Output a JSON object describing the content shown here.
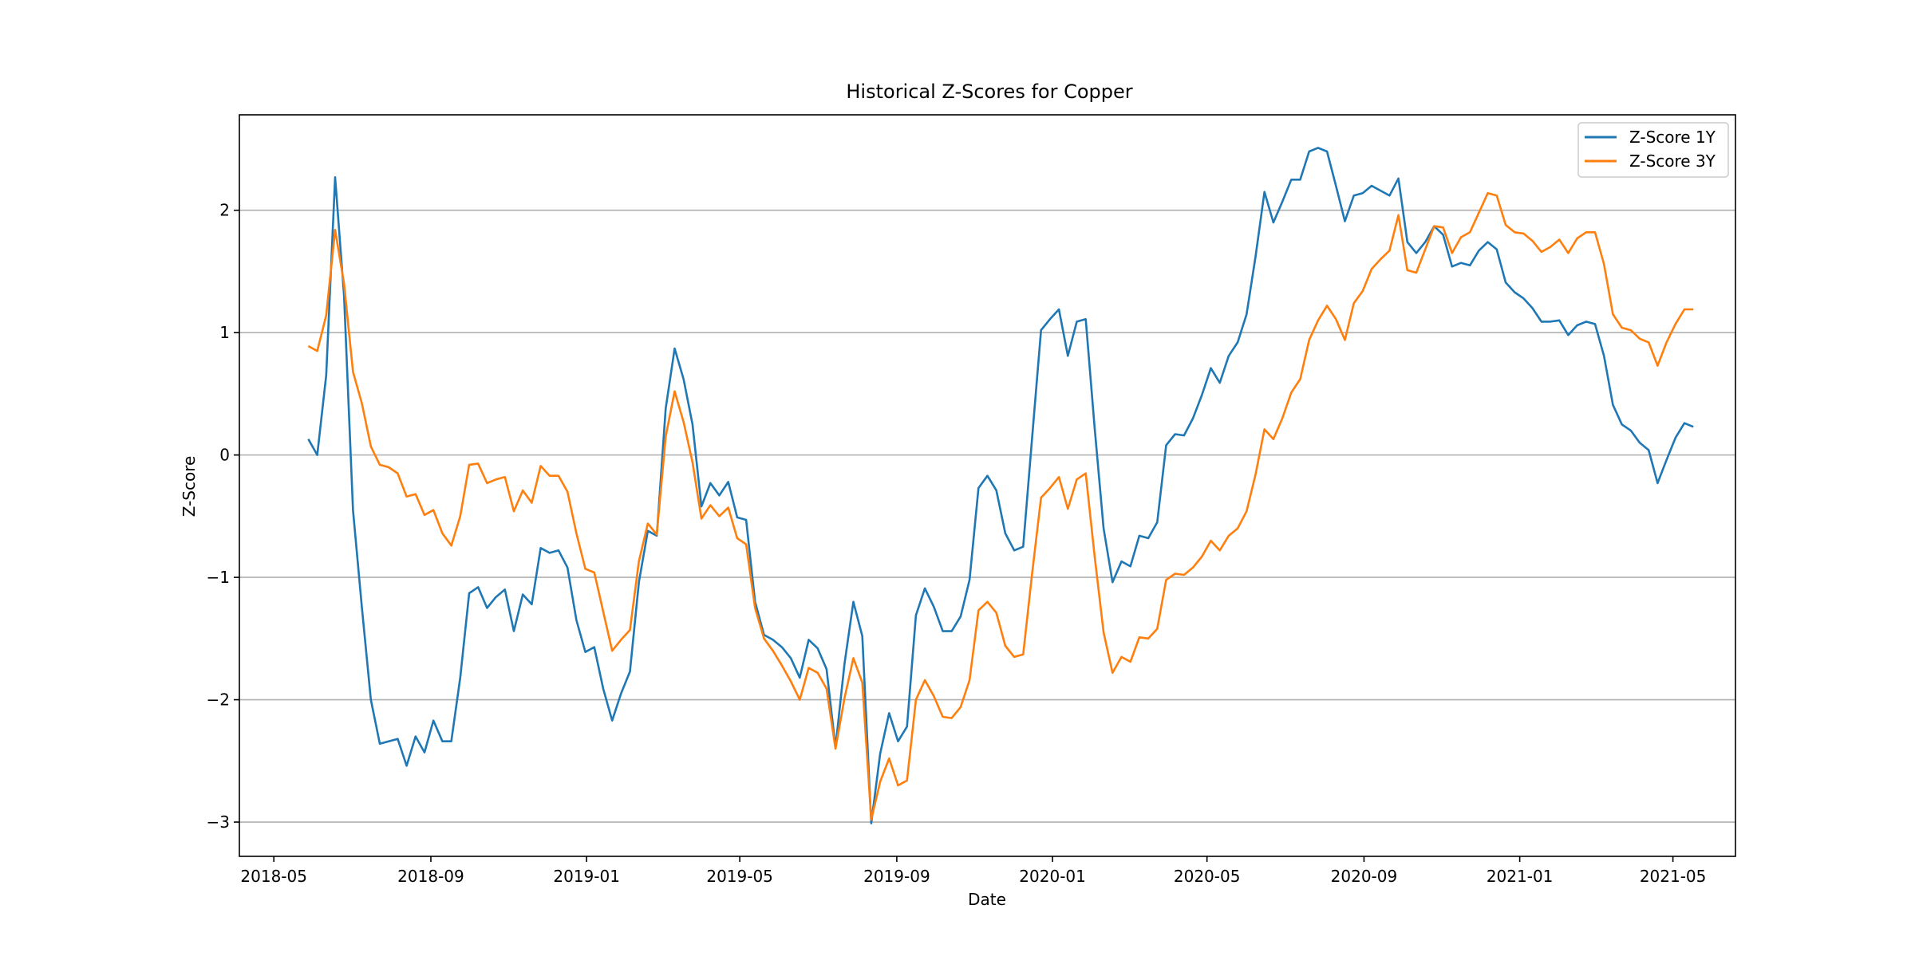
{
  "chart_data": {
    "type": "line",
    "title": "Historical Z-Scores for Copper",
    "xlabel": "Date",
    "ylabel": "Z-Score",
    "x_ticks": [
      "2018-05",
      "2018-09",
      "2019-01",
      "2019-05",
      "2019-09",
      "2020-01",
      "2020-05",
      "2020-09",
      "2021-01",
      "2021-05"
    ],
    "y_ticks": [
      -3,
      -2,
      -1,
      0,
      1,
      2
    ],
    "xlim": [
      "2018-04-04",
      "2021-06-19"
    ],
    "ylim": [
      -3.28,
      2.78
    ],
    "grid": "horizontal",
    "legend_position": "top-right",
    "x": [
      "2018-05-28",
      "2018-06-04",
      "2018-06-11",
      "2018-06-18",
      "2018-06-25",
      "2018-07-02",
      "2018-07-09",
      "2018-07-16",
      "2018-07-23",
      "2018-07-30",
      "2018-08-06",
      "2018-08-13",
      "2018-08-20",
      "2018-08-27",
      "2018-09-03",
      "2018-09-10",
      "2018-09-17",
      "2018-09-24",
      "2018-10-01",
      "2018-10-08",
      "2018-10-15",
      "2018-10-22",
      "2018-10-29",
      "2018-11-05",
      "2018-11-12",
      "2018-11-19",
      "2018-11-26",
      "2018-12-03",
      "2018-12-10",
      "2018-12-17",
      "2018-12-24",
      "2018-12-31",
      "2019-01-07",
      "2019-01-14",
      "2019-01-21",
      "2019-01-28",
      "2019-02-04",
      "2019-02-11",
      "2019-02-18",
      "2019-02-25",
      "2019-03-04",
      "2019-03-11",
      "2019-03-18",
      "2019-03-25",
      "2019-04-01",
      "2019-04-08",
      "2019-04-15",
      "2019-04-22",
      "2019-04-29",
      "2019-05-06",
      "2019-05-13",
      "2019-05-20",
      "2019-05-27",
      "2019-06-03",
      "2019-06-10",
      "2019-06-17",
      "2019-06-24",
      "2019-07-01",
      "2019-07-08",
      "2019-07-15",
      "2019-07-22",
      "2019-07-29",
      "2019-08-05",
      "2019-08-12",
      "2019-08-19",
      "2019-08-26",
      "2019-09-02",
      "2019-09-09",
      "2019-09-16",
      "2019-09-23",
      "2019-09-30",
      "2019-10-07",
      "2019-10-14",
      "2019-10-21",
      "2019-10-28",
      "2019-11-04",
      "2019-11-11",
      "2019-11-18",
      "2019-11-25",
      "2019-12-02",
      "2019-12-09",
      "2019-12-16",
      "2019-12-23",
      "2019-12-30",
      "2020-01-06",
      "2020-01-13",
      "2020-01-20",
      "2020-01-27",
      "2020-02-03",
      "2020-02-10",
      "2020-02-17",
      "2020-02-24",
      "2020-03-02",
      "2020-03-09",
      "2020-03-16",
      "2020-03-23",
      "2020-03-30",
      "2020-04-06",
      "2020-04-13",
      "2020-04-20",
      "2020-04-27",
      "2020-05-04",
      "2020-05-11",
      "2020-05-18",
      "2020-05-25",
      "2020-06-01",
      "2020-06-08",
      "2020-06-15",
      "2020-06-22",
      "2020-06-29",
      "2020-07-06",
      "2020-07-13",
      "2020-07-20",
      "2020-07-27",
      "2020-08-03",
      "2020-08-10",
      "2020-08-17",
      "2020-08-24",
      "2020-08-31",
      "2020-09-07",
      "2020-09-14",
      "2020-09-21",
      "2020-09-28",
      "2020-10-05",
      "2020-10-12",
      "2020-10-19",
      "2020-10-26",
      "2020-11-02",
      "2020-11-09",
      "2020-11-16",
      "2020-11-23",
      "2020-11-30",
      "2020-12-07",
      "2020-12-14",
      "2020-12-21",
      "2020-12-28",
      "2021-01-04",
      "2021-01-11",
      "2021-01-18",
      "2021-01-25",
      "2021-02-01",
      "2021-02-08",
      "2021-02-15",
      "2021-02-22",
      "2021-03-01",
      "2021-03-08",
      "2021-03-15",
      "2021-03-22",
      "2021-03-29",
      "2021-04-05",
      "2021-04-12",
      "2021-04-19",
      "2021-04-26",
      "2021-05-03",
      "2021-05-10",
      "2021-05-17"
    ],
    "series": [
      {
        "name": "Z-Score 1Y",
        "color": "#1f77b4",
        "values": [
          0.13,
          0.0,
          0.65,
          2.27,
          1.3,
          -0.45,
          -1.25,
          -2.0,
          -2.36,
          -2.34,
          -2.32,
          -2.54,
          -2.3,
          -2.43,
          -2.17,
          -2.34,
          -2.34,
          -1.82,
          -1.13,
          -1.08,
          -1.25,
          -1.16,
          -1.1,
          -1.44,
          -1.14,
          -1.22,
          -0.76,
          -0.8,
          -0.78,
          -0.92,
          -1.35,
          -1.61,
          -1.57,
          -1.91,
          -2.17,
          -1.95,
          -1.77,
          -1.04,
          -0.62,
          -0.66,
          0.38,
          0.87,
          0.62,
          0.25,
          -0.42,
          -0.23,
          -0.33,
          -0.22,
          -0.51,
          -0.53,
          -1.2,
          -1.47,
          -1.51,
          -1.57,
          -1.66,
          -1.82,
          -1.51,
          -1.58,
          -1.75,
          -2.39,
          -1.71,
          -1.2,
          -1.48,
          -3.01,
          -2.44,
          -2.11,
          -2.34,
          -2.22,
          -1.31,
          -1.09,
          -1.24,
          -1.44,
          -1.44,
          -1.32,
          -1.02,
          -0.27,
          -0.17,
          -0.29,
          -0.64,
          -0.78,
          -0.75,
          0.14,
          1.02,
          1.11,
          1.19,
          0.81,
          1.09,
          1.11,
          0.22,
          -0.6,
          -1.04,
          -0.87,
          -0.91,
          -0.66,
          -0.68,
          -0.55,
          0.08,
          0.17,
          0.16,
          0.3,
          0.49,
          0.71,
          0.59,
          0.81,
          0.92,
          1.15,
          1.62,
          2.15,
          1.9,
          2.07,
          2.25,
          2.25,
          2.48,
          2.51,
          2.48,
          2.2,
          1.91,
          2.12,
          2.14,
          2.2,
          2.16,
          2.12,
          2.26,
          1.74,
          1.65,
          1.74,
          1.87,
          1.8,
          1.54,
          1.57,
          1.55,
          1.67,
          1.74,
          1.68,
          1.41,
          1.33,
          1.28,
          1.2,
          1.09,
          1.09,
          1.1,
          0.98,
          1.06,
          1.09,
          1.07,
          0.81,
          0.41,
          0.25,
          0.2,
          0.1,
          0.04,
          -0.23,
          -0.04,
          0.14,
          0.26,
          0.23
        ]
      },
      {
        "name": "Z-Score 3Y",
        "color": "#ff7f0e",
        "values": [
          0.89,
          0.85,
          1.14,
          1.84,
          1.4,
          0.68,
          0.42,
          0.07,
          -0.08,
          -0.1,
          -0.15,
          -0.34,
          -0.32,
          -0.49,
          -0.45,
          -0.64,
          -0.74,
          -0.5,
          -0.08,
          -0.07,
          -0.23,
          -0.2,
          -0.18,
          -0.46,
          -0.29,
          -0.39,
          -0.09,
          -0.17,
          -0.17,
          -0.3,
          -0.64,
          -0.93,
          -0.96,
          -1.28,
          -1.6,
          -1.51,
          -1.43,
          -0.87,
          -0.56,
          -0.65,
          0.15,
          0.52,
          0.27,
          -0.06,
          -0.52,
          -0.41,
          -0.5,
          -0.43,
          -0.68,
          -0.73,
          -1.25,
          -1.5,
          -1.6,
          -1.72,
          -1.85,
          -2.0,
          -1.74,
          -1.78,
          -1.91,
          -2.4,
          -1.99,
          -1.66,
          -1.86,
          -2.98,
          -2.67,
          -2.48,
          -2.7,
          -2.66,
          -2.0,
          -1.84,
          -1.97,
          -2.14,
          -2.15,
          -2.06,
          -1.84,
          -1.27,
          -1.2,
          -1.29,
          -1.56,
          -1.65,
          -1.63,
          -0.97,
          -0.35,
          -0.27,
          -0.18,
          -0.44,
          -0.2,
          -0.15,
          -0.83,
          -1.45,
          -1.78,
          -1.65,
          -1.69,
          -1.49,
          -1.5,
          -1.42,
          -1.02,
          -0.97,
          -0.98,
          -0.92,
          -0.83,
          -0.7,
          -0.78,
          -0.66,
          -0.6,
          -0.46,
          -0.16,
          0.21,
          0.13,
          0.3,
          0.51,
          0.62,
          0.94,
          1.1,
          1.22,
          1.11,
          0.94,
          1.24,
          1.34,
          1.52,
          1.6,
          1.67,
          1.96,
          1.51,
          1.49,
          1.68,
          1.87,
          1.86,
          1.65,
          1.78,
          1.82,
          1.98,
          2.14,
          2.12,
          1.88,
          1.82,
          1.81,
          1.75,
          1.66,
          1.7,
          1.76,
          1.65,
          1.77,
          1.82,
          1.82,
          1.56,
          1.15,
          1.04,
          1.02,
          0.95,
          0.92,
          0.73,
          0.92,
          1.07,
          1.19,
          1.19
        ]
      }
    ]
  }
}
